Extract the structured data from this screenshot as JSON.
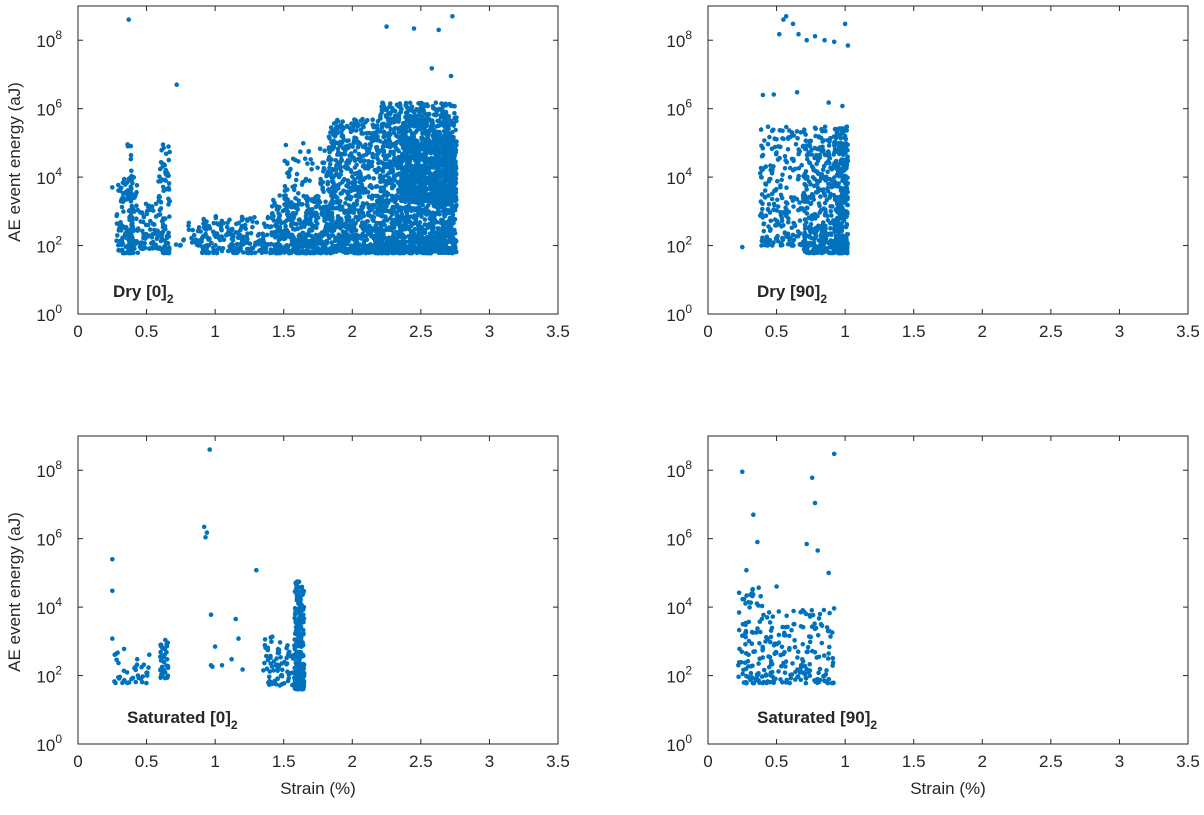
{
  "colors": {
    "marker": "#0072BD",
    "axis": "#262626",
    "background": "#ffffff"
  },
  "chart_data": [
    {
      "type": "scatter",
      "panel_label": {
        "main": "Dry [0]",
        "subscript": "2"
      },
      "xlabel": "",
      "ylabel": "AE event energy (aJ)",
      "xlim": [
        0,
        3.5
      ],
      "ylim": [
        1,
        1000000000
      ],
      "yscale": "log",
      "xticks": [
        0,
        0.5,
        1,
        1.5,
        2,
        2.5,
        3,
        3.5
      ],
      "xtick_labels": [
        "0",
        "0.5",
        "1",
        "1.5",
        "2",
        "2.5",
        "3",
        "3.5"
      ],
      "yticks": [
        1,
        100,
        10000,
        1000000,
        100000000
      ],
      "ytick_labels": [
        {
          "base": "10",
          "exp": "0"
        },
        {
          "base": "10",
          "exp": "2"
        },
        {
          "base": "10",
          "exp": "4"
        },
        {
          "base": "10",
          "exp": "6"
        },
        {
          "base": "10",
          "exp": "8"
        }
      ],
      "clusters": [
        {
          "x": [
            0.28,
            0.44
          ],
          "y": [
            60,
            10000
          ],
          "n": 130
        },
        {
          "x": [
            0.36,
            0.4
          ],
          "y": [
            60,
            100000
          ],
          "n": 45
        },
        {
          "x": [
            0.45,
            0.58
          ],
          "y": [
            80,
            2000
          ],
          "n": 60
        },
        {
          "x": [
            0.58,
            0.67
          ],
          "y": [
            60,
            80000
          ],
          "n": 90
        },
        {
          "x": [
            0.7,
            0.9
          ],
          "y": [
            100,
            500
          ],
          "n": 25
        },
        {
          "x": [
            0.9,
            1.4
          ],
          "y": [
            60,
            800
          ],
          "n": 200
        },
        {
          "x": [
            1.4,
            1.82
          ],
          "y": [
            60,
            3000
          ],
          "n": 320
        },
        {
          "x": [
            1.5,
            1.82
          ],
          "y": [
            200,
            100000
          ],
          "n": 120
        },
        {
          "x": [
            1.82,
            2.2
          ],
          "y": [
            60,
            500000
          ],
          "n": 700
        },
        {
          "x": [
            2.2,
            2.76
          ],
          "y": [
            60,
            1500000
          ],
          "n": 1500
        },
        {
          "x": [
            2.35,
            2.76
          ],
          "y": [
            2000,
            500000
          ],
          "n": 700
        }
      ],
      "points": [
        {
          "x": 0.37,
          "y": 400000000
        },
        {
          "x": 0.72,
          "y": 5000000
        },
        {
          "x": 2.25,
          "y": 250000000
        },
        {
          "x": 2.45,
          "y": 220000000
        },
        {
          "x": 2.58,
          "y": 15000000
        },
        {
          "x": 2.63,
          "y": 200000000
        },
        {
          "x": 2.73,
          "y": 500000000
        },
        {
          "x": 2.72,
          "y": 9000000
        },
        {
          "x": 2.55,
          "y": 1200000
        },
        {
          "x": 0.25,
          "y": 5000
        },
        {
          "x": 0.62,
          "y": 90000
        }
      ]
    },
    {
      "type": "scatter",
      "panel_label": {
        "main": "Dry [90]",
        "subscript": "2"
      },
      "xlabel": "",
      "ylabel": "",
      "xlim": [
        0,
        3.5
      ],
      "ylim": [
        1,
        1000000000
      ],
      "yscale": "log",
      "xticks": [
        0,
        0.5,
        1,
        1.5,
        2,
        2.5,
        3,
        3.5
      ],
      "xtick_labels": [
        "0",
        "0.5",
        "1",
        "1.5",
        "2",
        "2.5",
        "3",
        "3.5"
      ],
      "yticks": [
        1,
        100,
        10000,
        1000000,
        100000000
      ],
      "ytick_labels": [
        {
          "base": "10",
          "exp": "0"
        },
        {
          "base": "10",
          "exp": "2"
        },
        {
          "base": "10",
          "exp": "4"
        },
        {
          "base": "10",
          "exp": "6"
        },
        {
          "base": "10",
          "exp": "8"
        }
      ],
      "clusters": [
        {
          "x": [
            0.38,
            0.7
          ],
          "y": [
            100,
            300000
          ],
          "n": 220
        },
        {
          "x": [
            0.7,
            1.02
          ],
          "y": [
            60,
            300000
          ],
          "n": 450
        },
        {
          "x": [
            0.92,
            1.02
          ],
          "y": [
            60,
            300000
          ],
          "n": 200
        }
      ],
      "points": [
        {
          "x": 0.25,
          "y": 90
        },
        {
          "x": 0.4,
          "y": 2500000
        },
        {
          "x": 0.48,
          "y": 2600000
        },
        {
          "x": 0.57,
          "y": 500000000
        },
        {
          "x": 0.62,
          "y": 300000000
        },
        {
          "x": 0.66,
          "y": 150000000
        },
        {
          "x": 0.72,
          "y": 100000000
        },
        {
          "x": 0.78,
          "y": 130000000
        },
        {
          "x": 0.85,
          "y": 100000000
        },
        {
          "x": 0.92,
          "y": 90000000
        },
        {
          "x": 1.0,
          "y": 300000000
        },
        {
          "x": 1.02,
          "y": 70000000
        },
        {
          "x": 0.52,
          "y": 150000000
        },
        {
          "x": 0.55,
          "y": 400000000
        },
        {
          "x": 0.65,
          "y": 3000000
        },
        {
          "x": 0.88,
          "y": 1500000
        },
        {
          "x": 0.98,
          "y": 1200000
        }
      ]
    },
    {
      "type": "scatter",
      "panel_label": {
        "main": "Saturated [0]",
        "subscript": "2"
      },
      "xlabel": "Strain (%)",
      "ylabel": "AE event energy (aJ)",
      "xlim": [
        0,
        3.5
      ],
      "ylim": [
        1,
        1000000000
      ],
      "yscale": "log",
      "xticks": [
        0,
        0.5,
        1,
        1.5,
        2,
        2.5,
        3,
        3.5
      ],
      "xtick_labels": [
        "0",
        "0.5",
        "1",
        "1.5",
        "2",
        "2.5",
        "3",
        "3.5"
      ],
      "yticks": [
        1,
        100,
        10000,
        1000000,
        100000000
      ],
      "ytick_labels": [
        {
          "base": "10",
          "exp": "0"
        },
        {
          "base": "10",
          "exp": "2"
        },
        {
          "base": "10",
          "exp": "4"
        },
        {
          "base": "10",
          "exp": "6"
        },
        {
          "base": "10",
          "exp": "8"
        }
      ],
      "clusters": [
        {
          "x": [
            0.25,
            0.52
          ],
          "y": [
            60,
            700
          ],
          "n": 40
        },
        {
          "x": [
            0.6,
            0.66
          ],
          "y": [
            80,
            1500
          ],
          "n": 40
        },
        {
          "x": [
            1.35,
            1.58
          ],
          "y": [
            50,
            1500
          ],
          "n": 80
        },
        {
          "x": [
            1.58,
            1.65
          ],
          "y": [
            40,
            60000
          ],
          "n": 240
        }
      ],
      "points": [
        {
          "x": 0.25,
          "y": 250000
        },
        {
          "x": 0.25,
          "y": 30000
        },
        {
          "x": 0.25,
          "y": 1200
        },
        {
          "x": 0.96,
          "y": 400000000
        },
        {
          "x": 0.92,
          "y": 2200000
        },
        {
          "x": 0.94,
          "y": 1500000
        },
        {
          "x": 0.93,
          "y": 1100000
        },
        {
          "x": 1.3,
          "y": 120000
        },
        {
          "x": 0.97,
          "y": 6000
        },
        {
          "x": 1.15,
          "y": 4500
        },
        {
          "x": 1.17,
          "y": 1200
        },
        {
          "x": 0.97,
          "y": 200
        },
        {
          "x": 1.0,
          "y": 700
        },
        {
          "x": 1.05,
          "y": 200
        },
        {
          "x": 1.12,
          "y": 300
        },
        {
          "x": 1.2,
          "y": 150
        },
        {
          "x": 0.98,
          "y": 180
        }
      ]
    },
    {
      "type": "scatter",
      "panel_label": {
        "main": "Saturated [90]",
        "subscript": "2"
      },
      "xlabel": "Strain (%)",
      "ylabel": "",
      "xlim": [
        0,
        3.5
      ],
      "ylim": [
        1,
        1000000000
      ],
      "yscale": "log",
      "xticks": [
        0,
        0.5,
        1,
        1.5,
        2,
        2.5,
        3,
        3.5
      ],
      "xtick_labels": [
        "0",
        "0.5",
        "1",
        "1.5",
        "2",
        "2.5",
        "3",
        "3.5"
      ],
      "yticks": [
        1,
        100,
        10000,
        1000000,
        100000000
      ],
      "ytick_labels": [
        {
          "base": "10",
          "exp": "0"
        },
        {
          "base": "10",
          "exp": "2"
        },
        {
          "base": "10",
          "exp": "4"
        },
        {
          "base": "10",
          "exp": "6"
        },
        {
          "base": "10",
          "exp": "8"
        }
      ],
      "clusters": [
        {
          "x": [
            0.22,
            0.4
          ],
          "y": [
            60,
            40000
          ],
          "n": 90
        },
        {
          "x": [
            0.4,
            0.65
          ],
          "y": [
            60,
            10000
          ],
          "n": 80
        },
        {
          "x": [
            0.65,
            0.92
          ],
          "y": [
            60,
            10000
          ],
          "n": 90
        }
      ],
      "points": [
        {
          "x": 0.25,
          "y": 90000000
        },
        {
          "x": 0.33,
          "y": 5000000
        },
        {
          "x": 0.36,
          "y": 800000
        },
        {
          "x": 0.72,
          "y": 700000
        },
        {
          "x": 0.76,
          "y": 60000000
        },
        {
          "x": 0.78,
          "y": 11000000
        },
        {
          "x": 0.8,
          "y": 450000
        },
        {
          "x": 0.92,
          "y": 300000000
        },
        {
          "x": 0.88,
          "y": 100000
        },
        {
          "x": 0.28,
          "y": 120000
        },
        {
          "x": 0.5,
          "y": 40000
        }
      ]
    }
  ]
}
